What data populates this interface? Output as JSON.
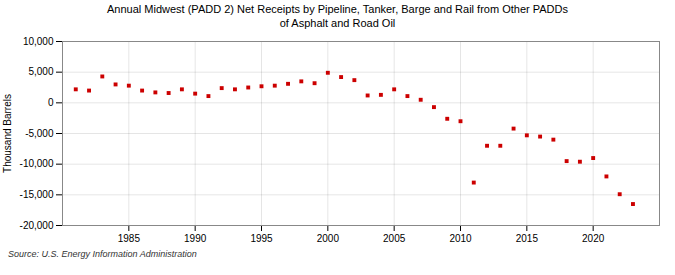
{
  "chart_data": {
    "type": "scatter",
    "title": "Annual Midwest (PADD 2) Net Receipts by Pipeline, Tanker, Barge and Rail from Other PADDs\nof Asphalt and Road Oil",
    "ylabel": "Thousand Barrels",
    "source": "Source: U.S. Energy Information Administration",
    "color": "#cc0000",
    "marker": "square",
    "grid": true,
    "x": [
      1981,
      1982,
      1983,
      1984,
      1985,
      1986,
      1987,
      1988,
      1989,
      1990,
      1991,
      1992,
      1993,
      1994,
      1995,
      1996,
      1997,
      1998,
      1999,
      2000,
      2001,
      2002,
      2003,
      2004,
      2005,
      2006,
      2007,
      2008,
      2009,
      2010,
      2011,
      2012,
      2013,
      2014,
      2015,
      2016,
      2017,
      2018,
      2019,
      2020,
      2021,
      2022,
      2023
    ],
    "values": [
      2200,
      2000,
      4300,
      3000,
      2800,
      2000,
      1700,
      1600,
      2200,
      1500,
      1100,
      2400,
      2200,
      2500,
      2700,
      2800,
      3100,
      3500,
      3200,
      4900,
      4200,
      3700,
      1200,
      1300,
      2200,
      1100,
      500,
      -700,
      -2600,
      -3000,
      -13000,
      -7000,
      -7000,
      -4200,
      -5300,
      -5500,
      -6000,
      -9500,
      -9600,
      -9000,
      -12000,
      -14900,
      -16500
    ],
    "xlim": [
      1980,
      2025
    ],
    "xticks": [
      1985,
      1990,
      1995,
      2000,
      2005,
      2010,
      2015,
      2020
    ],
    "ylim": [
      -20000,
      10000
    ],
    "yticks": [
      {
        "value": -20000,
        "label": "-20,000"
      },
      {
        "value": -15000,
        "label": "-15,000"
      },
      {
        "value": -10000,
        "label": "-10,000"
      },
      {
        "value": -5000,
        "label": "-5,000"
      },
      0,
      {
        "value": 5000,
        "label": "5,000"
      },
      {
        "value": 10000,
        "label": "10,000"
      }
    ]
  }
}
